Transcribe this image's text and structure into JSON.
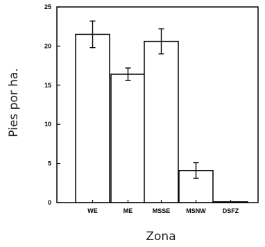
{
  "chart_data": {
    "type": "bar",
    "xlabel": "Zona",
    "ylabel": "Pies por ha.",
    "categories": [
      "WE",
      "ME",
      "MSSE",
      "MSNW",
      "DSFZ"
    ],
    "values": [
      21.5,
      16.4,
      20.6,
      4.1,
      0.1
    ],
    "errors": [
      1.7,
      0.8,
      1.6,
      1.0,
      0.0
    ],
    "ylim": [
      0,
      25
    ],
    "yticks": [
      0,
      5,
      10,
      15,
      20,
      25
    ],
    "grid": false,
    "legend": "none",
    "colors": {
      "bar_fill": "#ffffff",
      "stroke": "#000000"
    }
  }
}
